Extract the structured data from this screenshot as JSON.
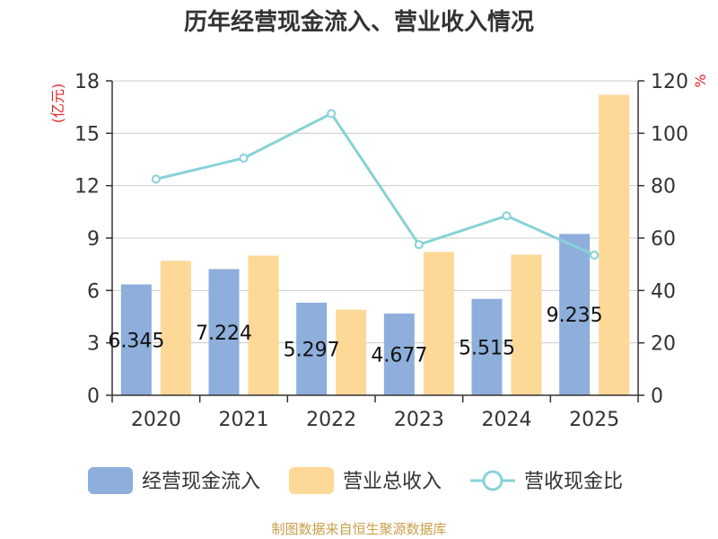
{
  "chart_data": {
    "type": "bar",
    "title": "历年经营现金流入、营业收入情况",
    "categories": [
      "2020",
      "2021",
      "2022",
      "2023",
      "2024",
      "2025"
    ],
    "series": [
      {
        "name": "经营现金流入",
        "kind": "bar",
        "axis": "left",
        "color": "#8eaedb",
        "values": [
          6.345,
          7.224,
          5.297,
          4.677,
          5.515,
          9.235
        ],
        "labels": [
          "6.345",
          "7.224",
          "5.297",
          "4.677",
          "5.515",
          "9.235"
        ]
      },
      {
        "name": "营业总收入",
        "kind": "bar",
        "axis": "left",
        "color": "#fdd897",
        "values": [
          7.7,
          8.0,
          4.9,
          8.2,
          8.05,
          17.2
        ]
      },
      {
        "name": "营收现金比",
        "kind": "line",
        "axis": "right",
        "color": "#87d2d8",
        "values": [
          82.5,
          90.5,
          107.5,
          57.5,
          68.5,
          53.5
        ]
      }
    ],
    "y_left": {
      "unit": "(亿元)",
      "min": 0,
      "max": 18,
      "ticks": [
        0,
        3,
        6,
        9,
        12,
        15,
        18
      ]
    },
    "y_right": {
      "unit": "%",
      "min": 0,
      "max": 120,
      "ticks": [
        0,
        20,
        40,
        60,
        80,
        100,
        120
      ]
    },
    "grid": true,
    "legend": "bottom"
  },
  "source": "制图数据来自恒生聚源数据库",
  "colors": {
    "unit_label": "#e3242b",
    "source": "#c9a04b",
    "axis": "#333333",
    "grid": "#cccccc"
  }
}
